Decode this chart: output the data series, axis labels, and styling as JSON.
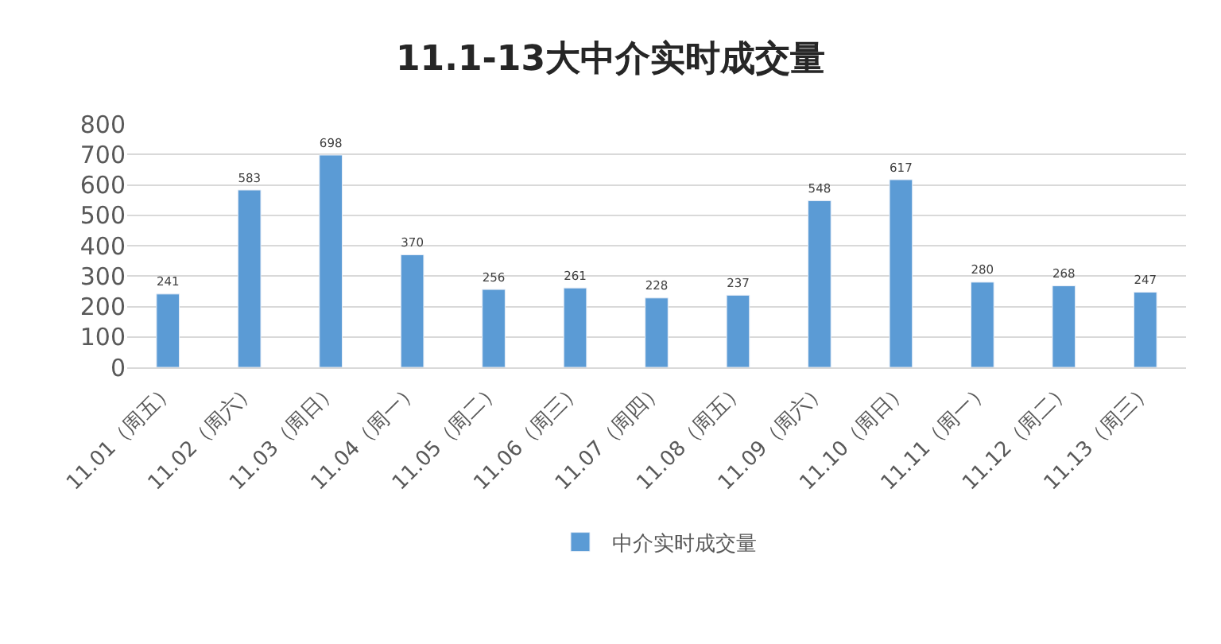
{
  "chart_data": {
    "type": "bar",
    "title": "11.1-13大中介实时成交量",
    "categories": [
      "11.01（周五）",
      "11.02（周六）",
      "11.03（周日）",
      "11.04（周一）",
      "11.05（周二）",
      "11.06（周三）",
      "11.07（周四）",
      "11.08（周五）",
      "11.09（周六）",
      "11.10（周日）",
      "11.11（周一）",
      "11.12（周二）",
      "11.13（周三）"
    ],
    "series": [
      {
        "name": "中介实时成交量",
        "color": "#5b9bd5",
        "values": [
          241,
          583,
          698,
          370,
          256,
          261,
          228,
          237,
          548,
          617,
          280,
          268,
          247
        ]
      }
    ],
    "ylim": [
      0,
      800
    ],
    "yticks": [
      0,
      100,
      200,
      300,
      400,
      500,
      600,
      700,
      800
    ],
    "grid": "y",
    "legend": "bottom",
    "data_labels": true
  }
}
